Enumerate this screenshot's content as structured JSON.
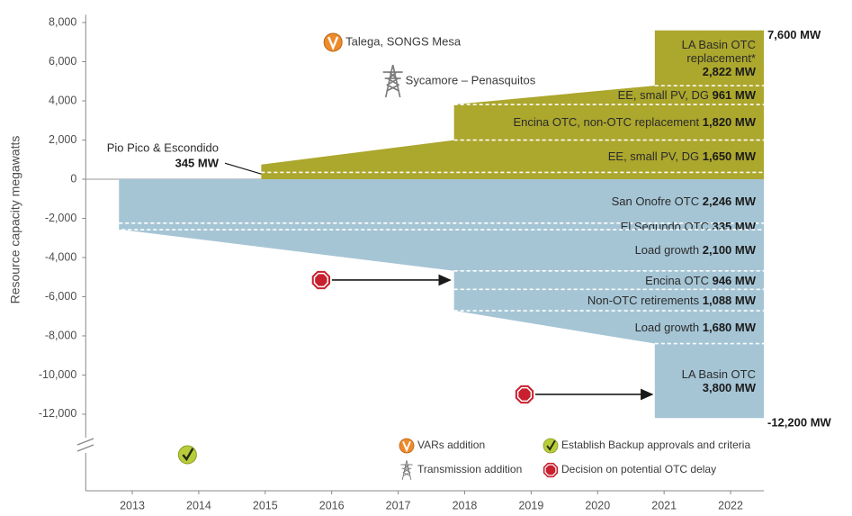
{
  "chart_data": {
    "type": "stacked_area",
    "ylabel": "Resource capacity megawatts",
    "xlim": [
      2012.3,
      2022.5
    ],
    "xticks": [
      2013,
      2014,
      2015,
      2016,
      2017,
      2018,
      2019,
      2020,
      2021,
      2022
    ],
    "ylim": [
      -12600,
      8400
    ],
    "yticks": [
      {
        "value": 8000,
        "label": "8,000"
      },
      {
        "value": 6000,
        "label": "6,000"
      },
      {
        "value": 4000,
        "label": "4,000"
      },
      {
        "value": 2000,
        "label": "2,000"
      },
      0,
      {
        "value": -2000,
        "label": "-2,000"
      },
      {
        "value": -4000,
        "label": "-4,000"
      },
      {
        "value": -6000,
        "label": "-6,000"
      },
      {
        "value": -8000,
        "label": "-8,000"
      },
      {
        "value": -10000,
        "label": "-10,000"
      },
      {
        "value": -12000,
        "label": "-12,000"
      }
    ],
    "resources": {
      "direction": "up",
      "color": "#aca72d",
      "total": 7600,
      "total_label": "7,600 MW",
      "segments": [
        {
          "name": "Pio Pico & Escondido",
          "x": [
            2014.94,
            2022.5
          ],
          "values": [
            345,
            345
          ],
          "value_label": "345 MW"
        },
        {
          "name": "EE, small PV, DG",
          "x": [
            2014.94,
            2017.84,
            2022.5
          ],
          "values": [
            400,
            1650,
            1650
          ],
          "value_label": "1,650 MW"
        },
        {
          "name": "Encina OTC, non-OTC replacement",
          "x": [
            2017.84,
            2022.5
          ],
          "values": [
            1820,
            1820
          ],
          "value_label": "1,820 MW"
        },
        {
          "name": "EE, small PV, DG",
          "x": [
            2017.84,
            2020.86,
            2022.5
          ],
          "values": [
            0,
            961,
            961
          ],
          "value_label": "961 MW"
        },
        {
          "name": "LA Basin OTC replacement*",
          "x": [
            2020.86,
            2022.5
          ],
          "values": [
            2822,
            2822
          ],
          "value_label": "2,822 MW"
        }
      ]
    },
    "needs": {
      "direction": "down",
      "color": "#a5c5d5",
      "total": -12200,
      "total_label": "-12,200 MW",
      "segments": [
        {
          "name": "San Onofre OTC",
          "x": [
            2012.8,
            2022.5
          ],
          "values": [
            2246,
            2246
          ],
          "value_label": "2,246 MW"
        },
        {
          "name": "El Segundo OTC",
          "x": [
            2012.8,
            2022.5
          ],
          "values": [
            335,
            335
          ],
          "value_label": "335 MW"
        },
        {
          "name": "Load growth",
          "x": [
            2012.84,
            2017.84,
            2022.5
          ],
          "values": [
            0,
            2100,
            2100
          ],
          "value_label": "2,100 MW"
        },
        {
          "name": "Encina OTC",
          "x": [
            2017.84,
            2022.5
          ],
          "values": [
            946,
            946
          ],
          "value_label": "946 MW"
        },
        {
          "name": "Non-OTC retirements",
          "x": [
            2017.84,
            2022.5
          ],
          "values": [
            1088,
            1088
          ],
          "value_label": "1,088 MW"
        },
        {
          "name": "Load growth",
          "x": [
            2017.84,
            2020.86,
            2022.5
          ],
          "values": [
            0,
            1680,
            1680
          ],
          "value_label": "1,680 MW"
        },
        {
          "name": "LA Basin OTC",
          "x": [
            2020.86,
            2022.5
          ],
          "values": [
            3800,
            3800
          ],
          "value_label": "3,800 MW"
        }
      ]
    },
    "legend": [
      {
        "label": "VARs addition",
        "color": "#ee8a2a",
        "events": [
          {
            "label": "Talega, SONGS Mesa",
            "x": 2016.02,
            "y": 6990
          }
        ]
      },
      {
        "label": "Establish Backup approvals and criteria",
        "color": "#b8cc3c",
        "events": [
          {
            "x": 2013.83
          }
        ]
      },
      {
        "label": "Transmission addition",
        "color": "#7a7a7a",
        "events": [
          {
            "label": "Sycamore – Penasquitos",
            "x": 2016.92,
            "y": 5010
          }
        ]
      },
      {
        "label": "Decision on potential OTC delay",
        "color": "#c8202f",
        "events": [
          {
            "x": 2015.84,
            "y": -5150,
            "x_end": 2017.78
          },
          {
            "x": 2018.9,
            "y": -10990,
            "x_end": 2020.82
          }
        ]
      }
    ]
  }
}
